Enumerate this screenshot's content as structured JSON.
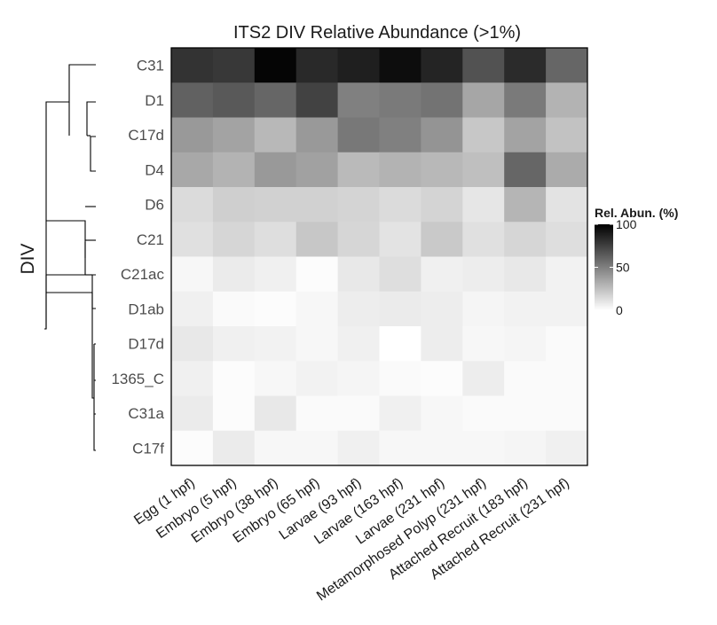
{
  "chart_data": {
    "type": "heatmap",
    "title": "ITS2 DIV Relative Abundance (>1%)",
    "ylabel": "DIV",
    "xlabel": "",
    "rows": [
      "C31",
      "D1",
      "C17d",
      "D4",
      "D6",
      "C21",
      "C21ac",
      "D1ab",
      "D17d",
      "1365_C",
      "C31a",
      "C17f"
    ],
    "columns": [
      "Egg (1 hpf)",
      "Embryo (5 hpf)",
      "Embryo (38 hpf)",
      "Embryo (65 hpf)",
      "Larvae (93 hpf)",
      "Larvae (163 hpf)",
      "Larvae (231 hpf)",
      "Metamorphosed Polyp (231 hpf)",
      "Attached Recruit (183 hpf)",
      "Attached Recruit (231 hpf)"
    ],
    "values": [
      [
        80,
        78,
        98,
        84,
        88,
        95,
        86,
        68,
        83,
        60
      ],
      [
        62,
        65,
        60,
        74,
        50,
        52,
        55,
        35,
        52,
        30
      ],
      [
        40,
        36,
        28,
        40,
        53,
        50,
        42,
        22,
        36,
        24
      ],
      [
        34,
        30,
        40,
        37,
        27,
        30,
        28,
        25,
        60,
        33
      ],
      [
        14,
        19,
        18,
        18,
        17,
        14,
        17,
        10,
        29,
        11
      ],
      [
        12,
        16,
        13,
        22,
        16,
        11,
        21,
        12,
        16,
        13
      ],
      [
        3,
        8,
        6,
        1,
        9,
        13,
        6,
        7,
        9,
        5
      ],
      [
        6,
        2,
        1,
        3,
        7,
        8,
        7,
        4,
        5,
        5
      ],
      [
        9,
        6,
        5,
        3,
        6,
        0,
        7,
        3,
        4,
        2
      ],
      [
        6,
        1,
        3,
        5,
        4,
        2,
        1,
        7,
        2,
        2
      ],
      [
        8,
        1,
        9,
        2,
        2,
        6,
        3,
        2,
        2,
        2
      ],
      [
        1,
        8,
        3,
        3,
        6,
        3,
        3,
        3,
        4,
        6
      ]
    ],
    "legend": {
      "title": "Rel. Abun. (%)",
      "min": 0,
      "max": 100,
      "ticks": [
        0,
        50,
        100
      ],
      "low_color": "#ffffff",
      "high_color": "#000000"
    }
  }
}
